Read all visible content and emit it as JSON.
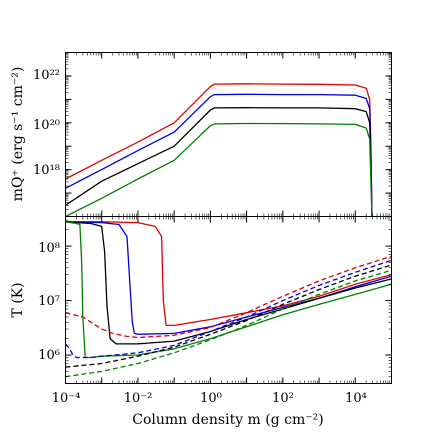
{
  "chart_data": [
    {
      "type": "line",
      "panel": "top",
      "ylabel": "mQ⁺ (erg s⁻¹ cm⁻²)",
      "xscale": "log",
      "yscale": "log",
      "xlim": [
        0.0001,
        100000
      ],
      "ylim": [
        1e+16,
        1e+23
      ],
      "yticks": [
        "10¹⁸",
        "10²⁰",
        "10²²"
      ],
      "grid": false,
      "series": [
        {
          "color": "#e00000",
          "style": "solid",
          "x": [
            0.0001,
            0.001,
            0.01,
            0.1,
            1.0,
            1.3,
            10,
            100,
            1000,
            10000,
            20000,
            25000,
            27000,
            29000
          ],
          "y": [
            4e+17,
            2.5e+18,
            1.5e+19,
            1e+20,
            3.5e+21,
            4.5e+21,
            4.6e+21,
            4.5e+21,
            4.4e+21,
            4.1e+21,
            3e+21,
            1e+21,
            1e+19,
            1e+16
          ]
        },
        {
          "color": "#0000e0",
          "style": "solid",
          "x": [
            0.0001,
            0.001,
            0.01,
            0.1,
            1.0,
            1.3,
            10,
            100,
            1000,
            10000,
            20000,
            25000,
            27000,
            29000
          ],
          "y": [
            1.6e+17,
            1e+18,
            6.5e+18,
            4e+19,
            1.3e+21,
            1.6e+21,
            1.65e+21,
            1.6e+21,
            1.6e+21,
            1.5e+21,
            1.1e+21,
            4e+20,
            5e+18,
            1e+16
          ]
        },
        {
          "color": "#000000",
          "style": "solid",
          "x": [
            0.0001,
            0.001,
            0.01,
            0.1,
            1.0,
            1.3,
            10,
            100,
            1000,
            10000,
            20000,
            25000,
            27000,
            29000
          ],
          "y": [
            3e+16,
            3.2e+17,
            1.8e+18,
            1e+19,
            3.5e+20,
            4.3e+20,
            4.4e+20,
            4.3e+20,
            4.3e+20,
            4e+20,
            3e+20,
            1e+20,
            1e+18,
            1e+16
          ]
        },
        {
          "color": "#008000",
          "style": "solid",
          "x": [
            0.0001,
            0.001,
            0.01,
            0.1,
            1.0,
            1.3,
            10,
            100,
            1000,
            10000,
            20000,
            25000,
            27000,
            29000
          ],
          "y": [
            1e+16,
            6e+16,
            4e+17,
            2.5e+18,
            7.5e+19,
            9e+19,
            9.3e+19,
            9.2e+19,
            9e+19,
            8.5e+19,
            6e+19,
            2e+19,
            3e+17,
            1e+16
          ]
        }
      ]
    },
    {
      "type": "line",
      "panel": "bottom",
      "xlabel": "Column density m (g cm⁻²)",
      "ylabel": "T (K)",
      "xscale": "log",
      "yscale": "log",
      "xlim": [
        0.0001,
        100000
      ],
      "ylim": [
        300000,
        350000000
      ],
      "xticks": [
        "10⁻⁴",
        "10⁻²",
        "10⁰",
        "10²",
        "10⁴"
      ],
      "yticks": [
        "10⁶",
        "10⁷",
        "10⁸"
      ],
      "grid": false,
      "series": [
        {
          "color": "#e00000",
          "style": "solid",
          "x": [
            0.0001,
            0.001,
            0.01,
            0.03,
            0.045,
            0.05,
            0.06,
            0.1,
            1,
            10,
            100,
            1000,
            10000,
            100000
          ],
          "y": [
            280000000.0,
            280000000.0,
            270000000.0,
            230000000.0,
            150000000.0,
            10000000.0,
            3500000.0,
            3500000.0,
            4500000.0,
            6000000.0,
            8000000.0,
            12000000.0,
            20000000.0,
            30000000.0
          ]
        },
        {
          "color": "#0000e0",
          "style": "solid",
          "x": [
            0.0001,
            0.001,
            0.003,
            0.005,
            0.006,
            0.007,
            0.008,
            0.01,
            0.1,
            1,
            10,
            100,
            1000,
            10000,
            100000
          ],
          "y": [
            280000000.0,
            270000000.0,
            250000000.0,
            150000000.0,
            20000000.0,
            4000000.0,
            2500000.0,
            2400000.0,
            2500000.0,
            3300000.0,
            5000000.0,
            7500000.0,
            11000000.0,
            18000000.0,
            28000000.0
          ]
        },
        {
          "color": "#000000",
          "style": "solid",
          "x": [
            0.0001,
            0.0005,
            0.001,
            0.0012,
            0.0014,
            0.0017,
            0.0025,
            0.01,
            0.1,
            1,
            10,
            100,
            1000,
            10000,
            100000
          ],
          "y": [
            280000000.0,
            260000000.0,
            230000000.0,
            80000000.0,
            8000000.0,
            2000000.0,
            1600000.0,
            1600000.0,
            1800000.0,
            2700000.0,
            4500000.0,
            7000000.0,
            11000000.0,
            17000000.0,
            25000000.0
          ]
        },
        {
          "color": "#008000",
          "style": "solid",
          "x": [
            0.0001,
            0.0002,
            0.00025,
            0.00028,
            0.0003,
            0.00035,
            0.0005,
            0.001,
            0.01,
            0.1,
            1,
            10,
            100,
            1000,
            10000,
            100000
          ],
          "y": [
            280000000.0,
            260000000.0,
            250000000.0,
            50000000.0,
            5000000.0,
            900000.0,
            900000.0,
            950000.0,
            1000000.0,
            1300000.0,
            2000000.0,
            3300000.0,
            5500000.0,
            8500000.0,
            13000000.0,
            20000000.0
          ]
        },
        {
          "color": "#e00000",
          "style": "dashed",
          "x": [
            0.0001,
            0.0003,
            0.0005,
            0.001,
            0.002,
            0.005,
            0.01,
            0.1,
            1,
            10,
            100,
            1000,
            10000,
            100000
          ],
          "y": [
            6000000.0,
            5000000.0,
            4000000.0,
            3000000.0,
            2500000.0,
            2200000.0,
            2100000.0,
            2300000.0,
            3200000.0,
            6000000.0,
            12000000.0,
            23000000.0,
            40000000.0,
            65000000.0
          ]
        },
        {
          "color": "#0000e0",
          "style": "dashed",
          "x": [
            0.0001,
            0.00013,
            0.00016,
            0.0002,
            0.0005,
            0.001,
            0.01,
            0.1,
            1,
            10,
            100,
            1000,
            10000,
            100000
          ],
          "y": [
            1600000.0,
            1300000.0,
            1000000.0,
            900000.0,
            900000.0,
            950000.0,
            1100000.0,
            1500000.0,
            2700000.0,
            5000000.0,
            10000000.0,
            19000000.0,
            33000000.0,
            55000000.0
          ]
        },
        {
          "color": "#000000",
          "style": "dashed",
          "x": [
            0.0001,
            0.001,
            0.01,
            0.1,
            1,
            10,
            100,
            1000,
            10000,
            100000
          ],
          "y": [
            600000.0,
            700000.0,
            950000.0,
            1400000.0,
            2400000.0,
            4300000.0,
            8500000.0,
            16000000.0,
            28000000.0,
            45000000.0
          ]
        },
        {
          "color": "#008000",
          "style": "dashed",
          "x": [
            0.0001,
            0.001,
            0.01,
            0.1,
            1,
            10,
            100,
            1000,
            10000,
            100000
          ],
          "y": [
            400000.0,
            500000.0,
            700000.0,
            1100000.0,
            1900000.0,
            3500000.0,
            7000000.0,
            13000000.0,
            23000000.0,
            36000000.0
          ]
        }
      ]
    }
  ]
}
